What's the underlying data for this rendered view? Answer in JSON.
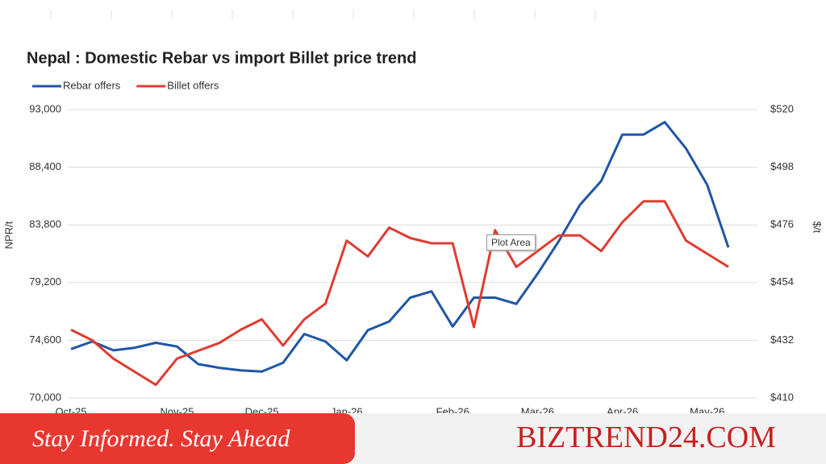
{
  "chart_data": {
    "type": "line",
    "title": "Nepal : Domestic Rebar vs import Billet price trend",
    "ylabel": "NPR/t",
    "y2label": "$/t",
    "categories": [
      "Oct-25",
      null,
      null,
      null,
      null,
      "Nov-25",
      null,
      null,
      null,
      "Dec-25",
      null,
      null,
      null,
      "Jan-26",
      null,
      null,
      null,
      null,
      "Feb-26",
      null,
      null,
      null,
      "Mar-26",
      null,
      null,
      null,
      "Apr-26",
      null,
      null,
      null,
      "May-26",
      null
    ],
    "series": [
      {
        "name": "Rebar offers",
        "color": "#1f56a5",
        "axis": "y",
        "values": [
          73900,
          74500,
          73800,
          74000,
          74400,
          74100,
          72700,
          72400,
          72200,
          72100,
          72800,
          75100,
          74500,
          73000,
          75400,
          76100,
          78000,
          78500,
          75700,
          78000,
          78000,
          77500,
          79900,
          82500,
          85400,
          87300,
          91000,
          91000,
          92000,
          89900,
          87000,
          82000
        ]
      },
      {
        "name": "Billet offers",
        "color": "#e03c31",
        "axis": "y2",
        "values": [
          436,
          432,
          425,
          420,
          415,
          425,
          428,
          431,
          436,
          440,
          430,
          440,
          446,
          470,
          464,
          475,
          471,
          469,
          469,
          437,
          474,
          460,
          466,
          472,
          472,
          466,
          477,
          485,
          485,
          470,
          465,
          460
        ]
      }
    ],
    "ylim": [
      70000,
      93000
    ],
    "yticks": [
      {
        "value": 70000,
        "label": "70,000"
      },
      {
        "value": 74600,
        "label": "74,600"
      },
      {
        "value": 79200,
        "label": "79,200"
      },
      {
        "value": 83800,
        "label": "83,800"
      },
      {
        "value": 88400,
        "label": "88,400"
      },
      {
        "value": 93000,
        "label": "93,000"
      }
    ],
    "y2lim": [
      410,
      520
    ],
    "y2ticks": [
      {
        "value": 410,
        "label": "$410"
      },
      {
        "value": 432,
        "label": "$432"
      },
      {
        "value": 454,
        "label": "$454"
      },
      {
        "value": 476,
        "label": "$476"
      },
      {
        "value": 498,
        "label": "$498"
      },
      {
        "value": 520,
        "label": "$520"
      }
    ],
    "grid": true,
    "legend": "top-left"
  },
  "tooltip": "Plot Area",
  "banner": {
    "tagline": "Stay Informed. Stay Ahead",
    "brand": "BIZTREND24.COM"
  }
}
